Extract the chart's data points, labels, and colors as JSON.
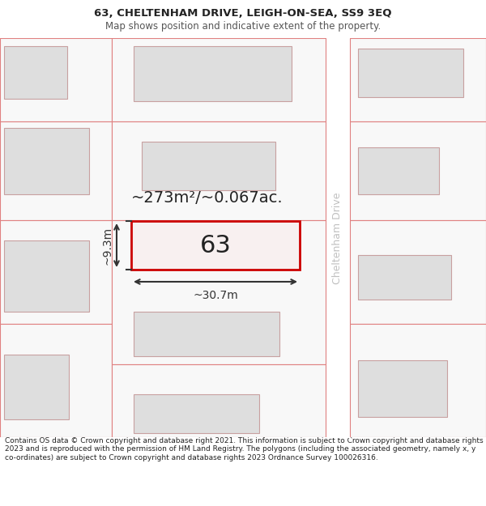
{
  "title_line1": "63, CHELTENHAM DRIVE, LEIGH-ON-SEA, SS9 3EQ",
  "title_line2": "Map shows position and indicative extent of the property.",
  "footer_text": "Contains OS data © Crown copyright and database right 2021. This information is subject to Crown copyright and database rights 2023 and is reproduced with the permission of HM Land Registry. The polygons (including the associated geometry, namely x, y co-ordinates) are subject to Crown copyright and database rights 2023 Ordnance Survey 100026316.",
  "area_text": "~273m²/~0.067ac.",
  "number_label": "63",
  "dim_width": "~30.7m",
  "dim_height": "~9.3m",
  "street_name": "Cheltenham Drive",
  "bg_color": "#f5f5f5",
  "white": "#ffffff",
  "plot_line_color": "#e08080",
  "building_fill": "#dedede",
  "building_edge": "#c8a0a0",
  "target_fill": "#f8f0f0",
  "target_edge": "#cc0000",
  "road_label_color": "#c0c0c0",
  "dim_color": "#333333",
  "text_dark": "#222222",
  "text_med": "#555555"
}
